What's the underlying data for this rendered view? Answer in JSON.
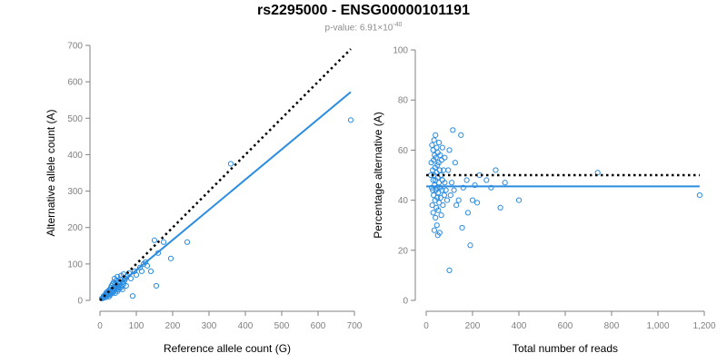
{
  "title": "rs2295000 - ENSG00000101191",
  "subtitle": {
    "prefix": "p-value: 6.91×10",
    "exponent": "-40"
  },
  "colors": {
    "points": "#2b8ce0",
    "fit": "#2b8ce0",
    "reference": "#000000",
    "axis": "#808080"
  },
  "chart_data": [
    {
      "type": "scatter",
      "xlabel": "Reference allele count (G)",
      "ylabel": "Alternative allele count (A)",
      "xlim": [
        0,
        700
      ],
      "ylim": [
        0,
        700
      ],
      "xticks": [
        "0",
        "100",
        "200",
        "300",
        "400",
        "500",
        "600",
        "700"
      ],
      "yticks": [
        "0",
        "100",
        "200",
        "300",
        "400",
        "500",
        "600",
        "700"
      ],
      "series": [
        {
          "role": "points",
          "points": [
            [
              5,
              5
            ],
            [
              8,
              6
            ],
            [
              10,
              8
            ],
            [
              10,
              12
            ],
            [
              12,
              10
            ],
            [
              14,
              15
            ],
            [
              15,
              8
            ],
            [
              16,
              18
            ],
            [
              18,
              14
            ],
            [
              18,
              22
            ],
            [
              20,
              12
            ],
            [
              20,
              20
            ],
            [
              22,
              25
            ],
            [
              22,
              16
            ],
            [
              24,
              18
            ],
            [
              25,
              28
            ],
            [
              25,
              10
            ],
            [
              26,
              22
            ],
            [
              28,
              30
            ],
            [
              28,
              15
            ],
            [
              30,
              25
            ],
            [
              30,
              18
            ],
            [
              30,
              35
            ],
            [
              32,
              22
            ],
            [
              32,
              40
            ],
            [
              34,
              28
            ],
            [
              35,
              20
            ],
            [
              35,
              45
            ],
            [
              36,
              32
            ],
            [
              38,
              25
            ],
            [
              38,
              50
            ],
            [
              40,
              30
            ],
            [
              40,
              38
            ],
            [
              40,
              60
            ],
            [
              42,
              20
            ],
            [
              42,
              45
            ],
            [
              44,
              35
            ],
            [
              45,
              30
            ],
            [
              45,
              55
            ],
            [
              46,
              40
            ],
            [
              48,
              25
            ],
            [
              48,
              65
            ],
            [
              50,
              35
            ],
            [
              50,
              48
            ],
            [
              52,
              30
            ],
            [
              52,
              40
            ],
            [
              55,
              58
            ],
            [
              55,
              45
            ],
            [
              58,
              35
            ],
            [
              58,
              68
            ],
            [
              60,
              40
            ],
            [
              62,
              50
            ],
            [
              62,
              30
            ],
            [
              65,
              72
            ],
            [
              65,
              45
            ],
            [
              68,
              55
            ],
            [
              70,
              60
            ],
            [
              72,
              40
            ],
            [
              75,
              68
            ],
            [
              80,
              75
            ],
            [
              85,
              60
            ],
            [
              90,
              12
            ],
            [
              95,
              80
            ],
            [
              100,
              70
            ],
            [
              110,
              90
            ],
            [
              115,
              80
            ],
            [
              120,
              100
            ],
            [
              125,
              105
            ],
            [
              130,
              95
            ],
            [
              140,
              80
            ],
            [
              150,
              165
            ],
            [
              155,
              40
            ],
            [
              160,
              130
            ],
            [
              175,
              160
            ],
            [
              195,
              115
            ],
            [
              240,
              160
            ],
            [
              360,
              375
            ],
            [
              690,
              495
            ]
          ]
        },
        {
          "role": "fit-line",
          "points": [
            [
              0,
              0
            ],
            [
              690,
              572
            ]
          ]
        },
        {
          "role": "reference-line",
          "points": [
            [
              0,
              0
            ],
            [
              690,
              690
            ]
          ]
        }
      ]
    },
    {
      "type": "scatter",
      "xlabel": "Total number of reads",
      "ylabel": "Percentage alternative (A)",
      "xlim": [
        0,
        1200
      ],
      "ylim": [
        0,
        100
      ],
      "xticks": [
        "0",
        "200",
        "400",
        "600",
        "800",
        "1,000",
        "1,200"
      ],
      "yticks": [
        "0",
        "20",
        "40",
        "60",
        "80",
        "100"
      ],
      "series": [
        {
          "role": "points",
          "points": [
            [
              20,
              50
            ],
            [
              22,
              55
            ],
            [
              24,
              45
            ],
            [
              25,
              62
            ],
            [
              26,
              38
            ],
            [
              28,
              52
            ],
            [
              28,
              44
            ],
            [
              30,
              60
            ],
            [
              30,
              48
            ],
            [
              30,
              35
            ],
            [
              32,
              56
            ],
            [
              32,
              42
            ],
            [
              34,
              64
            ],
            [
              34,
              50
            ],
            [
              35,
              28
            ],
            [
              36,
              46
            ],
            [
              36,
              58
            ],
            [
              38,
              40
            ],
            [
              38,
              53
            ],
            [
              40,
              66
            ],
            [
              40,
              48
            ],
            [
              40,
              33
            ],
            [
              42,
              57
            ],
            [
              42,
              44
            ],
            [
              44,
              51
            ],
            [
              44,
              37
            ],
            [
              45,
              61
            ],
            [
              46,
              45
            ],
            [
              46,
              30
            ],
            [
              48,
              54
            ],
            [
              48,
              41
            ],
            [
              50,
              49
            ],
            [
              50,
              59
            ],
            [
              50,
              26
            ],
            [
              52,
              43
            ],
            [
              52,
              36
            ],
            [
              54,
              55
            ],
            [
              55,
              47
            ],
            [
              55,
              63
            ],
            [
              56,
              39
            ],
            [
              58,
              52
            ],
            [
              58,
              27
            ],
            [
              60,
              45
            ],
            [
              60,
              58
            ],
            [
              62,
              41
            ],
            [
              64,
              50
            ],
            [
              65,
              34
            ],
            [
              66,
              56
            ],
            [
              68,
              44
            ],
            [
              70,
              48
            ],
            [
              70,
              61
            ],
            [
              72,
              38
            ],
            [
              75,
              52
            ],
            [
              78,
              42
            ],
            [
              80,
              47
            ],
            [
              80,
              57
            ],
            [
              85,
              44
            ],
            [
              90,
              40
            ],
            [
              95,
              52
            ],
            [
              100,
              12
            ],
            [
              100,
              60
            ],
            [
              105,
              42
            ],
            [
              110,
              47
            ],
            [
              115,
              68
            ],
            [
              120,
              44
            ],
            [
              125,
              55
            ],
            [
              130,
              38
            ],
            [
              140,
              40
            ],
            [
              150,
              66
            ],
            [
              155,
              29
            ],
            [
              160,
              45
            ],
            [
              175,
              48
            ],
            [
              180,
              35
            ],
            [
              190,
              22
            ],
            [
              200,
              40
            ],
            [
              210,
              46
            ],
            [
              220,
              39
            ],
            [
              230,
              50
            ],
            [
              260,
              48
            ],
            [
              280,
              45
            ],
            [
              300,
              52
            ],
            [
              320,
              37
            ],
            [
              340,
              47
            ],
            [
              400,
              40
            ],
            [
              740,
              51
            ],
            [
              1180,
              42
            ]
          ]
        },
        {
          "role": "fit-line",
          "points": [
            [
              0,
              45.5
            ],
            [
              1180,
              45.5
            ]
          ]
        },
        {
          "role": "reference-line",
          "points": [
            [
              0,
              50
            ],
            [
              1180,
              50
            ]
          ]
        }
      ]
    }
  ]
}
